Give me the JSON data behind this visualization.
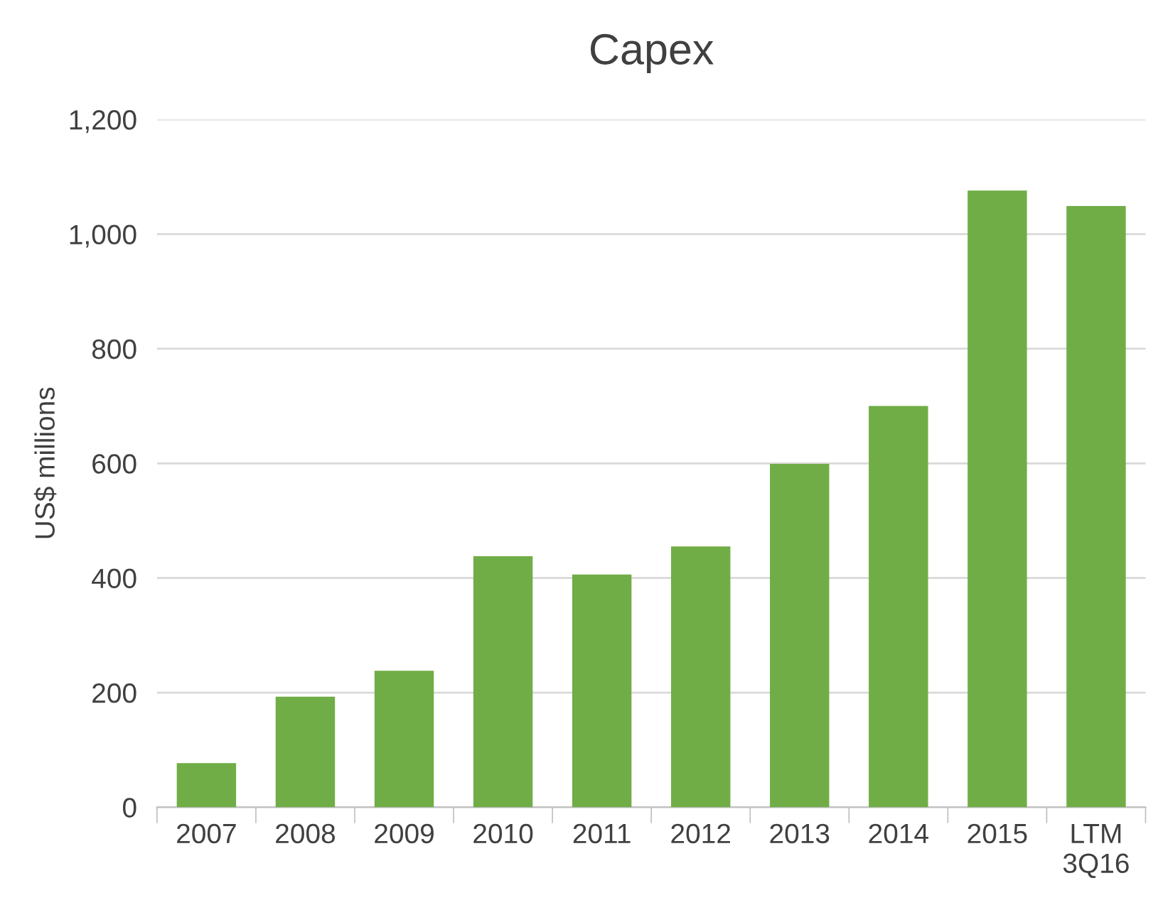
{
  "chart_data": {
    "type": "bar",
    "title": "Capex",
    "ylabel": "US$ millions",
    "categories": [
      "2007",
      "2008",
      "2009",
      "2010",
      "2011",
      "2012",
      "2013",
      "2014",
      "2015",
      "LTM\n3Q16"
    ],
    "values": [
      77,
      193,
      238,
      438,
      406,
      455,
      599,
      700,
      1076,
      1049
    ],
    "color": "#70ad47",
    "ylim": [
      0,
      1200
    ],
    "yticks": [
      {
        "value": 0,
        "label": "0"
      },
      {
        "value": 200,
        "label": "200"
      },
      {
        "value": 400,
        "label": "400"
      },
      {
        "value": 600,
        "label": "600"
      },
      {
        "value": 800,
        "label": "800"
      },
      {
        "value": 1000,
        "label": "1,000"
      },
      {
        "value": 1200,
        "label": "1,200"
      }
    ],
    "grid": "y",
    "legend": false
  }
}
